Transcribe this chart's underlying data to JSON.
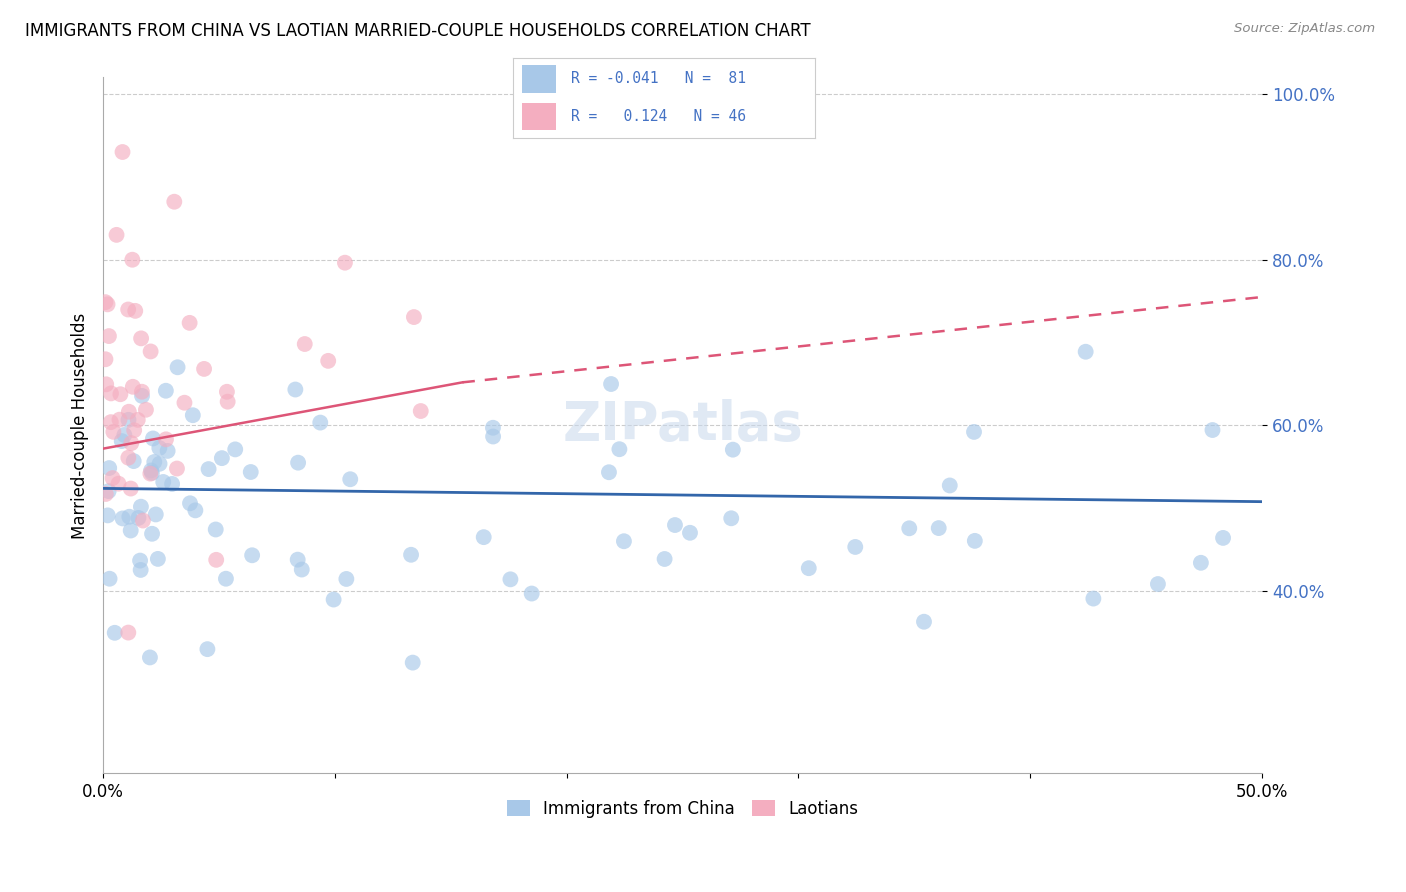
{
  "title": "IMMIGRANTS FROM CHINA VS LAOTIAN MARRIED-COUPLE HOUSEHOLDS CORRELATION CHART",
  "source": "Source: ZipAtlas.com",
  "ylabel": "Married-couple Households",
  "xlim": [
    0.0,
    0.5
  ],
  "ylim": [
    0.18,
    1.02
  ],
  "xticks": [
    0.0,
    0.1,
    0.2,
    0.3,
    0.4,
    0.5
  ],
  "xtick_labels": [
    "0.0%",
    "",
    "",
    "",
    "",
    "50.0%"
  ],
  "yticks_right": [
    0.4,
    0.6,
    0.8,
    1.0
  ],
  "ytick_labels_right": [
    "40.0%",
    "60.0%",
    "80.0%",
    "100.0%"
  ],
  "blue_color": "#a8c8e8",
  "blue_line_color": "#3366aa",
  "pink_color": "#f4aec0",
  "pink_line_color": "#dd5577",
  "blue_R": -0.041,
  "blue_N": 81,
  "pink_R": 0.124,
  "pink_N": 46,
  "blue_line_x0": 0.0,
  "blue_line_y0": 0.524,
  "blue_line_x1": 0.5,
  "blue_line_y1": 0.508,
  "pink_line_x0": 0.0,
  "pink_line_y0": 0.572,
  "pink_line_xsolid": 0.155,
  "pink_line_ysolid": 0.652,
  "pink_line_x1": 0.5,
  "pink_line_y1": 0.755,
  "background_color": "#ffffff",
  "grid_color": "#cccccc",
  "right_tick_color": "#4472c4",
  "legend_box_color": "#cccccc"
}
